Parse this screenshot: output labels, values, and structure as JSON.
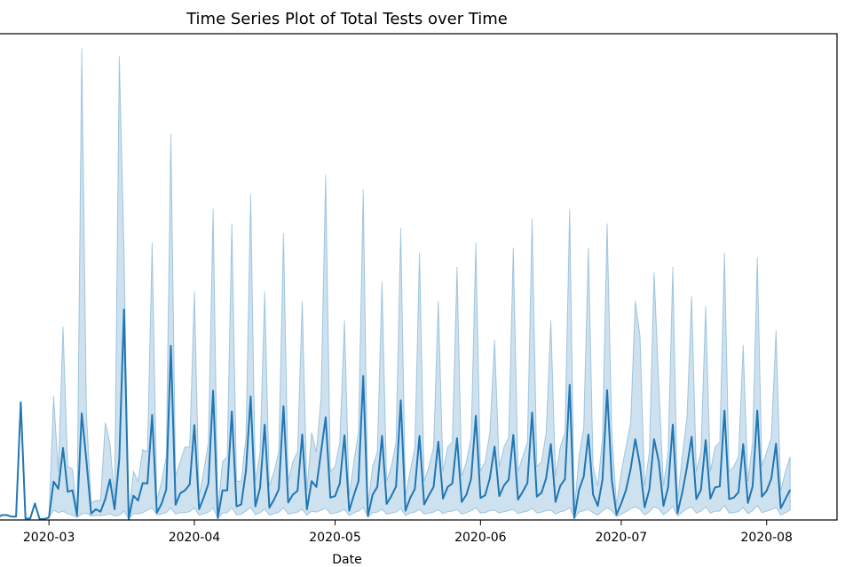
{
  "chart_data": {
    "type": "line",
    "title": "Time Series Plot of Total Tests over Time",
    "xlabel": "Date",
    "ylabel": "",
    "x_tick_labels": [
      "2020-03",
      "2020-04",
      "2020-05",
      "2020-06",
      "2020-07",
      "2020-08"
    ],
    "x_ticks": [
      "2020-03-01",
      "2020-04-01",
      "2020-05-01",
      "2020-06-01",
      "2020-07-01",
      "2020-08-01"
    ],
    "xlim": [
      "2020-02-19",
      "2020-08-16"
    ],
    "ylim": [
      0,
      100
    ],
    "y_scale_note": "y-axis tick labels are not visible; y values are relative (0-100 scale of the visible plot area)",
    "grid": false,
    "legend": "none",
    "colors": {
      "line": "#1f77b4",
      "band": "#1f77b4",
      "band_opacity": 0.22,
      "spine": "#000000"
    },
    "series": [
      {
        "x": [
          "2020-02-19",
          "2020-02-20",
          "2020-02-21",
          "2020-02-22",
          "2020-02-23",
          "2020-02-24",
          "2020-02-25",
          "2020-02-26",
          "2020-02-27",
          "2020-02-28",
          "2020-02-29",
          "2020-03-01",
          "2020-03-02",
          "2020-03-03",
          "2020-03-04",
          "2020-03-05",
          "2020-03-06",
          "2020-03-07",
          "2020-03-08",
          "2020-03-09",
          "2020-03-10",
          "2020-03-11",
          "2020-03-12",
          "2020-03-13",
          "2020-03-14",
          "2020-03-15",
          "2020-03-16",
          "2020-03-17",
          "2020-03-18",
          "2020-03-19",
          "2020-03-20",
          "2020-03-21",
          "2020-03-22",
          "2020-03-23",
          "2020-03-24",
          "2020-03-25",
          "2020-03-26",
          "2020-03-27",
          "2020-03-28",
          "2020-03-29",
          "2020-03-30",
          "2020-03-31",
          "2020-04-01",
          "2020-04-02",
          "2020-04-03",
          "2020-04-04",
          "2020-04-05",
          "2020-04-06",
          "2020-04-07",
          "2020-04-08",
          "2020-04-09",
          "2020-04-10",
          "2020-04-11",
          "2020-04-12",
          "2020-04-13",
          "2020-04-14",
          "2020-04-15",
          "2020-04-16",
          "2020-04-17",
          "2020-04-18",
          "2020-04-19",
          "2020-04-20",
          "2020-04-21",
          "2020-04-22",
          "2020-04-23",
          "2020-04-24",
          "2020-04-25",
          "2020-04-26",
          "2020-04-27",
          "2020-04-28",
          "2020-04-29",
          "2020-04-30",
          "2020-05-01",
          "2020-05-02",
          "2020-05-03",
          "2020-05-04",
          "2020-05-05",
          "2020-05-06",
          "2020-05-07",
          "2020-05-08",
          "2020-05-09",
          "2020-05-10",
          "2020-05-11",
          "2020-05-12",
          "2020-05-13",
          "2020-05-14",
          "2020-05-15",
          "2020-05-16",
          "2020-05-17",
          "2020-05-18",
          "2020-05-19",
          "2020-05-20",
          "2020-05-21",
          "2020-05-22",
          "2020-05-23",
          "2020-05-24",
          "2020-05-25",
          "2020-05-26",
          "2020-05-27",
          "2020-05-28",
          "2020-05-29",
          "2020-05-30",
          "2020-05-31",
          "2020-06-01",
          "2020-06-02",
          "2020-06-03",
          "2020-06-04",
          "2020-06-05",
          "2020-06-06",
          "2020-06-07",
          "2020-06-08",
          "2020-06-09",
          "2020-06-10",
          "2020-06-11",
          "2020-06-12",
          "2020-06-13",
          "2020-06-14",
          "2020-06-15",
          "2020-06-16",
          "2020-06-17",
          "2020-06-18",
          "2020-06-19",
          "2020-06-20",
          "2020-06-21",
          "2020-06-22",
          "2020-06-23",
          "2020-06-24",
          "2020-06-25",
          "2020-06-26",
          "2020-06-27",
          "2020-06-28",
          "2020-06-29",
          "2020-06-30",
          "2020-07-01",
          "2020-07-02",
          "2020-07-03",
          "2020-07-04",
          "2020-07-05",
          "2020-07-06",
          "2020-07-07",
          "2020-07-08",
          "2020-07-09",
          "2020-07-10",
          "2020-07-11",
          "2020-07-12",
          "2020-07-13",
          "2020-07-14",
          "2020-07-15",
          "2020-07-16",
          "2020-07-17",
          "2020-07-18",
          "2020-07-19",
          "2020-07-20",
          "2020-07-21",
          "2020-07-22",
          "2020-07-23",
          "2020-07-24",
          "2020-07-25",
          "2020-07-26",
          "2020-07-27",
          "2020-07-28",
          "2020-07-29",
          "2020-07-30",
          "2020-07-31",
          "2020-08-01",
          "2020-08-02",
          "2020-08-03",
          "2020-08-04",
          "2020-08-05",
          "2020-08-06"
        ],
        "y": [
          0.5,
          1.0,
          1.0,
          0.7,
          0.7,
          24.2,
          0.3,
          0.3,
          3.4,
          0.2,
          0.2,
          0.5,
          7.9,
          6.4,
          14.8,
          5.8,
          6.1,
          0.9,
          21.9,
          12.1,
          1.3,
          2.2,
          1.7,
          4.3,
          8.3,
          2.2,
          12.6,
          43.3,
          0.2,
          5.0,
          4.0,
          7.6,
          7.5,
          21.6,
          1.5,
          3.3,
          6.3,
          35.8,
          3.1,
          5.5,
          6.1,
          7.3,
          19.5,
          2.2,
          4.6,
          7.5,
          26.6,
          0.4,
          6.1,
          6.1,
          22.3,
          2.8,
          3.2,
          10.1,
          25.4,
          2.8,
          6.6,
          19.6,
          2.5,
          4.2,
          6.3,
          23.4,
          3.6,
          5.2,
          6.0,
          17.6,
          2.2,
          8.0,
          6.8,
          14.0,
          21.1,
          4.6,
          4.9,
          7.5,
          17.4,
          1.9,
          5.1,
          8.0,
          29.6,
          0.8,
          5.2,
          6.8,
          17.3,
          3.3,
          4.9,
          6.9,
          24.6,
          1.9,
          4.5,
          6.4,
          17.3,
          3.2,
          5.1,
          6.8,
          16.1,
          4.4,
          6.8,
          7.5,
          16.8,
          3.7,
          5.2,
          8.5,
          21.4,
          4.5,
          5.1,
          8.6,
          15.1,
          4.9,
          7.1,
          8.3,
          17.5,
          4.2,
          5.8,
          7.6,
          22.1,
          4.8,
          5.6,
          8.6,
          15.6,
          3.7,
          7.0,
          8.4,
          27.8,
          0.4,
          6.2,
          8.9,
          17.6,
          5.2,
          2.9,
          8.3,
          26.7,
          8.2,
          1.1,
          3.4,
          6.1,
          10.5,
          16.6,
          11.3,
          2.6,
          6.3,
          16.6,
          12.0,
          2.9,
          6.7,
          19.6,
          1.4,
          5.6,
          10.8,
          17.1,
          4.3,
          6.2,
          16.4,
          4.4,
          6.7,
          6.9,
          22.5,
          4.3,
          4.6,
          5.7,
          15.6,
          3.5,
          6.9,
          22.5,
          4.8,
          6.0,
          8.5,
          15.7,
          2.4,
          4.3,
          6.2
        ]
      }
    ],
    "band_lower": [
      0.5,
      1.0,
      1.0,
      0.7,
      0.7,
      24.2,
      0.3,
      0.3,
      3.4,
      0.2,
      0.2,
      0.5,
      2.0,
      1.5,
      1.8,
      1.3,
      1.0,
      0.5,
      1.2,
      1.4,
      0.8,
      0.9,
      0.9,
      1.0,
      1.3,
      0.8,
      1.0,
      1.8,
      0.2,
      1.3,
      1.2,
      1.5,
      2.0,
      2.5,
      1.0,
      1.2,
      1.5,
      2.5,
      1.2,
      1.5,
      1.5,
      1.7,
      2.5,
      1.0,
      1.3,
      1.6,
      2.5,
      0.3,
      1.4,
      1.5,
      2.5,
      1.0,
      1.2,
      1.8,
      2.6,
      1.1,
      1.5,
      2.3,
      1.0,
      1.3,
      1.6,
      2.5,
      1.2,
      1.4,
      1.6,
      2.2,
      1.0,
      1.8,
      1.6,
      2.0,
      2.4,
      1.3,
      1.4,
      1.7,
      2.2,
      0.9,
      1.5,
      1.8,
      2.6,
      0.6,
      1.5,
      1.6,
      2.2,
      1.2,
      1.4,
      1.6,
      2.4,
      0.9,
      1.4,
      1.6,
      2.2,
      1.2,
      1.4,
      1.6,
      2.1,
      1.3,
      1.7,
      1.8,
      2.2,
      1.2,
      1.5,
      1.9,
      2.5,
      1.4,
      1.5,
      1.9,
      2.0,
      1.4,
      1.7,
      1.9,
      2.2,
      1.3,
      1.6,
      1.8,
      2.4,
      1.4,
      1.6,
      1.9,
      2.0,
      1.2,
      1.7,
      1.9,
      2.6,
      0.3,
      1.6,
      1.9,
      2.2,
      1.5,
      1.0,
      1.9,
      2.5,
      1.9,
      0.7,
      1.2,
      1.7,
      2.3,
      2.7,
      2.2,
      1.0,
      1.7,
      2.7,
      2.3,
      1.1,
      1.8,
      2.8,
      0.8,
      1.6,
      2.3,
      2.7,
      1.4,
      1.8,
      2.7,
      1.4,
      1.8,
      1.8,
      3.0,
      1.4,
      1.5,
      1.7,
      2.6,
      1.3,
      1.9,
      3.0,
      1.5,
      1.8,
      2.1,
      2.6,
      1.0,
      1.5,
      2.0
    ],
    "band_upper": [
      0.5,
      1.0,
      1.0,
      0.7,
      0.7,
      24.2,
      0.3,
      0.3,
      3.4,
      0.2,
      0.2,
      0.5,
      25.5,
      10.0,
      39.8,
      11.0,
      10.5,
      2.0,
      97.0,
      22.0,
      3.5,
      4.0,
      4.0,
      20.0,
      16.0,
      4.5,
      95.5,
      55.4,
      1.0,
      10.0,
      8.0,
      14.5,
      14.0,
      57.0,
      4.0,
      8.0,
      13.0,
      79.5,
      9.0,
      12.0,
      15.0,
      15.0,
      47.0,
      5.0,
      10.0,
      16.0,
      64.0,
      2.0,
      12.0,
      13.0,
      61.0,
      8.0,
      8.0,
      17.0,
      67.0,
      8.0,
      14.0,
      47.0,
      7.0,
      10.0,
      14.0,
      59.0,
      8.0,
      12.0,
      14.0,
      45.0,
      6.0,
      18.0,
      14.0,
      25.0,
      71.0,
      10.0,
      11.0,
      16.0,
      41.0,
      5.0,
      12.0,
      18.0,
      68.0,
      3.0,
      11.0,
      14.0,
      49.0,
      8.0,
      11.0,
      16.0,
      60.0,
      5.0,
      10.0,
      15.0,
      55.0,
      8.0,
      11.0,
      15.0,
      45.0,
      10.0,
      15.0,
      16.0,
      52.0,
      9.0,
      12.0,
      17.0,
      57.0,
      10.0,
      12.0,
      18.0,
      37.0,
      11.0,
      15.0,
      17.0,
      56.0,
      10.0,
      13.0,
      16.0,
      62.0,
      11.0,
      12.0,
      18.0,
      41.0,
      9.0,
      15.0,
      18.0,
      64.0,
      2.0,
      13.0,
      19.0,
      56.0,
      11.0,
      7.0,
      17.0,
      61.0,
      18.0,
      3.0,
      10.0,
      15.0,
      20.0,
      45.0,
      38.0,
      7.0,
      14.0,
      51.0,
      28.0,
      7.0,
      14.0,
      52.0,
      4.0,
      13.0,
      21.0,
      46.0,
      10.0,
      14.0,
      44.0,
      10.0,
      15.0,
      16.0,
      55.0,
      10.0,
      11.0,
      13.0,
      36.0,
      8.0,
      16.0,
      54.0,
      11.0,
      14.0,
      17.0,
      39.0,
      6.0,
      10.0,
      13.0
    ]
  }
}
